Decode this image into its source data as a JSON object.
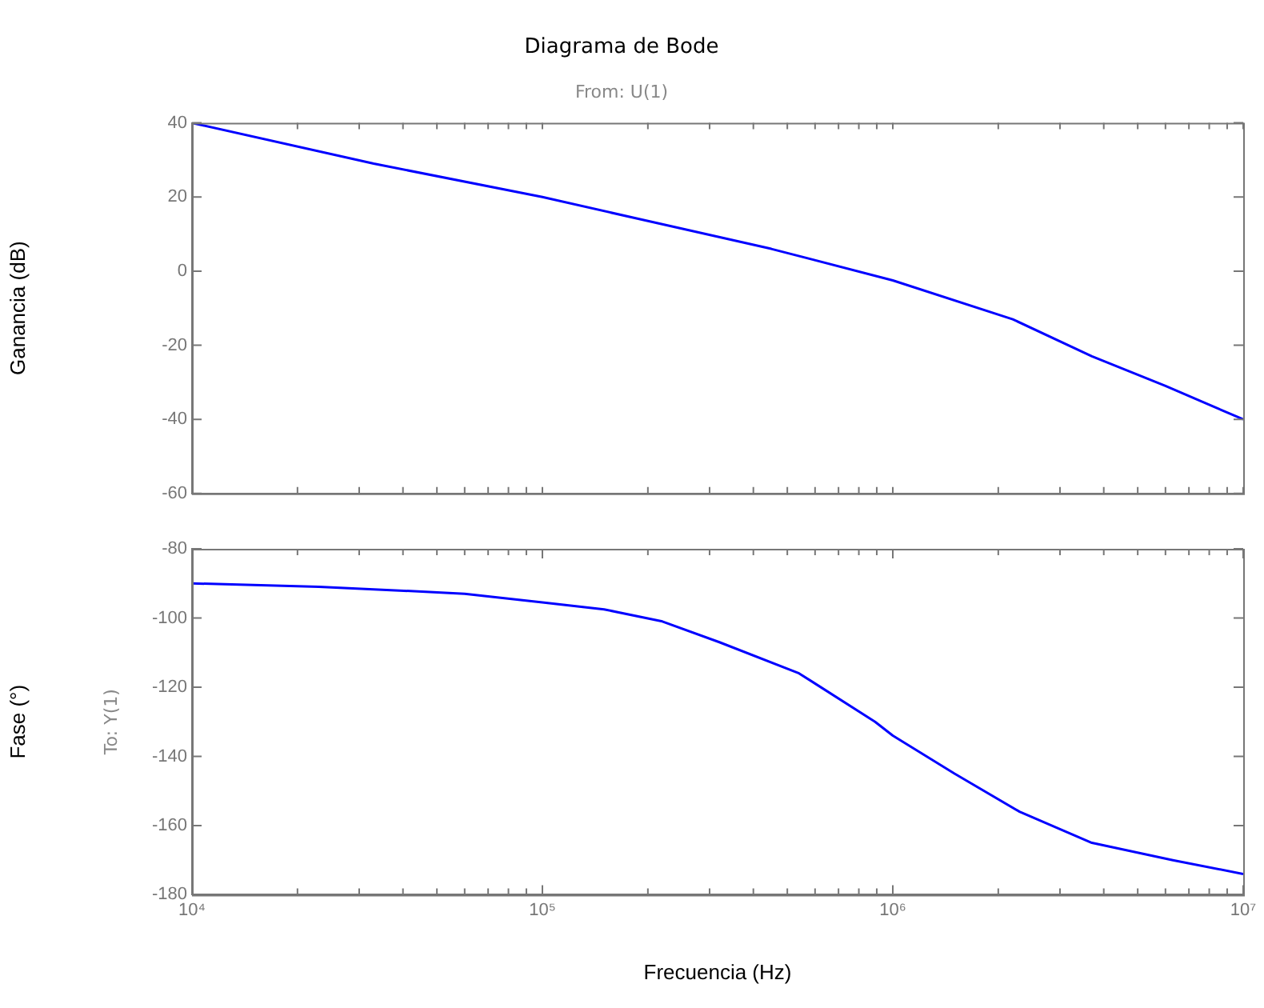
{
  "chart_data": [
    {
      "type": "line",
      "title": "Diagrama de Bode",
      "subtitle": "From: U(1)",
      "ylabel": "Ganancia (dB)",
      "tick_labels": "y",
      "log": "x",
      "grid": false,
      "legend": false,
      "marker": "none",
      "line_style": "solid",
      "color": "#0000ff",
      "x": [
        10000,
        33000,
        100000,
        190000,
        450000,
        1000000,
        2200000,
        3700000,
        6000000,
        10000000
      ],
      "values": [
        40,
        29,
        20,
        14,
        6,
        -2.5,
        -13,
        -23,
        -31,
        -40
      ],
      "xlim": [
        10000,
        10000000
      ],
      "xticks": [
        {
          "value": 10000,
          "label": null
        },
        {
          "value": 20000,
          "label": null
        },
        {
          "value": 30000,
          "label": null
        },
        {
          "value": 40000,
          "label": null
        },
        {
          "value": 50000,
          "label": null
        },
        {
          "value": 60000,
          "label": null
        },
        {
          "value": 70000,
          "label": null
        },
        {
          "value": 80000,
          "label": null
        },
        {
          "value": 90000,
          "label": null
        },
        {
          "value": 100000,
          "label": null
        },
        {
          "value": 200000,
          "label": null
        },
        {
          "value": 300000,
          "label": null
        },
        {
          "value": 400000,
          "label": null
        },
        {
          "value": 500000,
          "label": null
        },
        {
          "value": 600000,
          "label": null
        },
        {
          "value": 700000,
          "label": null
        },
        {
          "value": 800000,
          "label": null
        },
        {
          "value": 900000,
          "label": null
        },
        {
          "value": 1000000,
          "label": null
        },
        {
          "value": 2000000,
          "label": null
        },
        {
          "value": 3000000,
          "label": null
        },
        {
          "value": 4000000,
          "label": null
        },
        {
          "value": 5000000,
          "label": null
        },
        {
          "value": 6000000,
          "label": null
        },
        {
          "value": 7000000,
          "label": null
        },
        {
          "value": 8000000,
          "label": null
        },
        {
          "value": 9000000,
          "label": null
        },
        {
          "value": 10000000,
          "label": null
        }
      ],
      "ylim": [
        -60,
        40
      ],
      "yticks": [
        -60,
        -40,
        -20,
        0,
        20,
        40
      ]
    },
    {
      "type": "line",
      "xlabel": "Frecuencia (Hz)",
      "ylabel": "Fase (°)",
      "annotations": [
        "To: Y(1)"
      ],
      "log": "x",
      "grid": false,
      "legend": false,
      "marker": "none",
      "line_style": "solid",
      "color": "#0000ff",
      "x": [
        10000,
        23000,
        38000,
        60000,
        100000,
        150000,
        220000,
        320000,
        540000,
        890000,
        1000000,
        1500000,
        2300000,
        3700000,
        6300000,
        10000000
      ],
      "values": [
        -90,
        -91,
        -92,
        -93,
        -95.5,
        -97.5,
        -101,
        -107,
        -116,
        -130,
        -134,
        -145,
        -156,
        -165,
        -170,
        -174
      ],
      "xlim": [
        10000,
        10000000
      ],
      "xticks": [
        {
          "value": 10000,
          "label": "10⁴"
        },
        {
          "value": 20000,
          "label": null
        },
        {
          "value": 30000,
          "label": null
        },
        {
          "value": 40000,
          "label": null
        },
        {
          "value": 50000,
          "label": null
        },
        {
          "value": 60000,
          "label": null
        },
        {
          "value": 70000,
          "label": null
        },
        {
          "value": 80000,
          "label": null
        },
        {
          "value": 90000,
          "label": null
        },
        {
          "value": 100000,
          "label": "10⁵"
        },
        {
          "value": 200000,
          "label": null
        },
        {
          "value": 300000,
          "label": null
        },
        {
          "value": 400000,
          "label": null
        },
        {
          "value": 500000,
          "label": null
        },
        {
          "value": 600000,
          "label": null
        },
        {
          "value": 700000,
          "label": null
        },
        {
          "value": 800000,
          "label": null
        },
        {
          "value": 900000,
          "label": null
        },
        {
          "value": 1000000,
          "label": "10⁶"
        },
        {
          "value": 2000000,
          "label": null
        },
        {
          "value": 3000000,
          "label": null
        },
        {
          "value": 4000000,
          "label": null
        },
        {
          "value": 5000000,
          "label": null
        },
        {
          "value": 6000000,
          "label": null
        },
        {
          "value": 7000000,
          "label": null
        },
        {
          "value": 8000000,
          "label": null
        },
        {
          "value": 9000000,
          "label": null
        },
        {
          "value": 10000000,
          "label": "10⁷"
        }
      ],
      "ylim": [
        -180,
        -80
      ],
      "yticks": [
        -180,
        -160,
        -140,
        -120,
        -100,
        -80
      ]
    }
  ]
}
